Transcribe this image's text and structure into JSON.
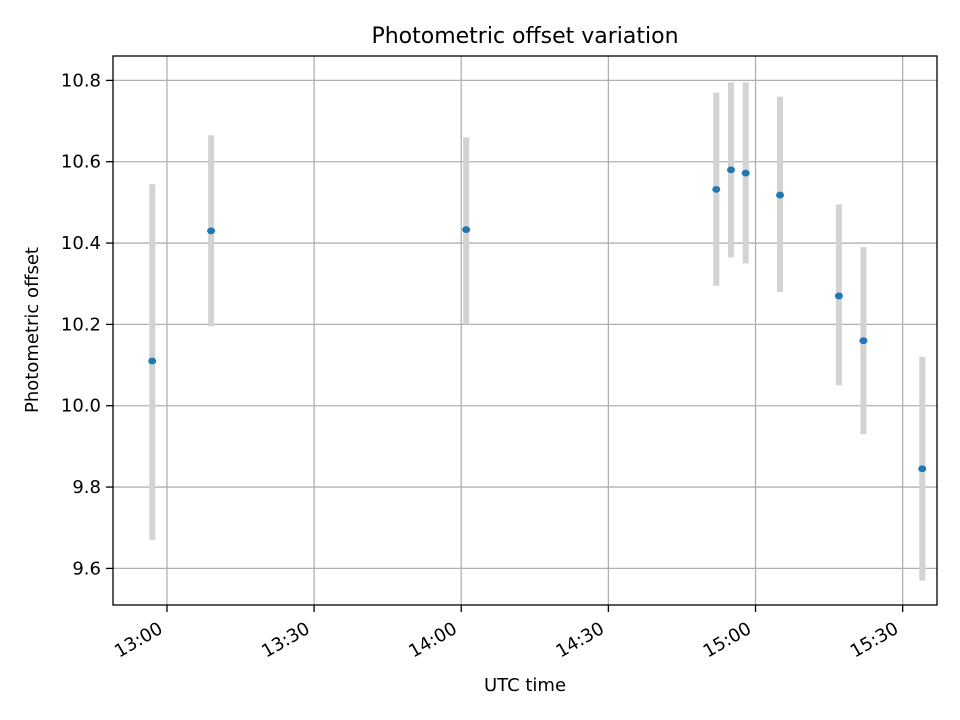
{
  "chart_data": {
    "type": "scatter",
    "title": "Photometric offset variation",
    "xlabel": "UTC time",
    "ylabel": "Photometric offset",
    "x_ticks": [
      "13:00",
      "13:30",
      "14:00",
      "14:30",
      "15:00",
      "15:30"
    ],
    "y_ticks": [
      9.6,
      9.8,
      10.0,
      10.2,
      10.4,
      10.6,
      10.8
    ],
    "xlim": [
      "12:49",
      "15:37"
    ],
    "ylim": [
      9.51,
      10.86
    ],
    "grid": true,
    "legend": "none",
    "marker_color": "#1f77b4",
    "errorbar_color": "#d3d3d3",
    "points": [
      {
        "x": "12:57",
        "y": 10.11,
        "ylow": 9.67,
        "yhigh": 10.545
      },
      {
        "x": "13:09",
        "y": 10.43,
        "ylow": 10.195,
        "yhigh": 10.665
      },
      {
        "x": "14:01",
        "y": 10.433,
        "ylow": 10.2,
        "yhigh": 10.66
      },
      {
        "x": "14:52",
        "y": 10.532,
        "ylow": 10.295,
        "yhigh": 10.77
      },
      {
        "x": "14:55",
        "y": 10.58,
        "ylow": 10.365,
        "yhigh": 10.795
      },
      {
        "x": "14:58",
        "y": 10.572,
        "ylow": 10.35,
        "yhigh": 10.795
      },
      {
        "x": "15:05",
        "y": 10.518,
        "ylow": 10.28,
        "yhigh": 10.76
      },
      {
        "x": "15:17",
        "y": 10.27,
        "ylow": 10.05,
        "yhigh": 10.495
      },
      {
        "x": "15:22",
        "y": 10.16,
        "ylow": 9.93,
        "yhigh": 10.39
      },
      {
        "x": "15:34",
        "y": 9.845,
        "ylow": 9.57,
        "yhigh": 10.12
      }
    ]
  }
}
